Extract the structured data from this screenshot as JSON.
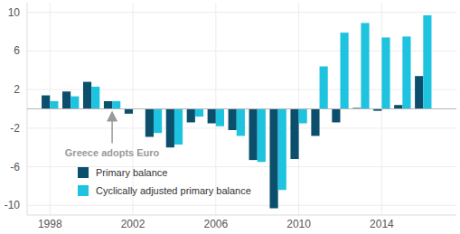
{
  "chart_data": {
    "type": "bar",
    "x": [
      1998,
      1999,
      2000,
      2001,
      2002,
      2003,
      2004,
      2005,
      2006,
      2007,
      2008,
      2009,
      2010,
      2011,
      2012,
      2013,
      2014,
      2015,
      2016
    ],
    "xlim": [
      1996.9,
      2017.6
    ],
    "xticks": [
      1998,
      2002,
      2006,
      2010,
      2014
    ],
    "ylim": [
      -11,
      11
    ],
    "yticks": [
      -10,
      -6,
      -2,
      2,
      6,
      10
    ],
    "grid": true,
    "legend": "lower left",
    "series": [
      {
        "name": "Primary balance",
        "color": "#0b4f6c",
        "values": [
          1.4,
          1.8,
          2.8,
          0.8,
          -0.5,
          -2.9,
          -4.0,
          -1.4,
          -1.5,
          -2.2,
          -5.3,
          -10.3,
          -5.2,
          -2.8,
          -1.4,
          0.1,
          -0.2,
          0.4,
          3.4
        ]
      },
      {
        "name": "Cyclically adjusted primary balance",
        "color": "#1ec3e0",
        "values": [
          0.8,
          1.3,
          2.3,
          0.8,
          0.0,
          -2.5,
          -3.7,
          -0.8,
          -1.8,
          -2.8,
          -5.5,
          -8.4,
          -1.5,
          4.4,
          7.9,
          8.9,
          7.4,
          7.5,
          9.7
        ]
      }
    ],
    "annotations": [
      {
        "text": "Greece adopts Euro",
        "x": 2001
      }
    ]
  }
}
